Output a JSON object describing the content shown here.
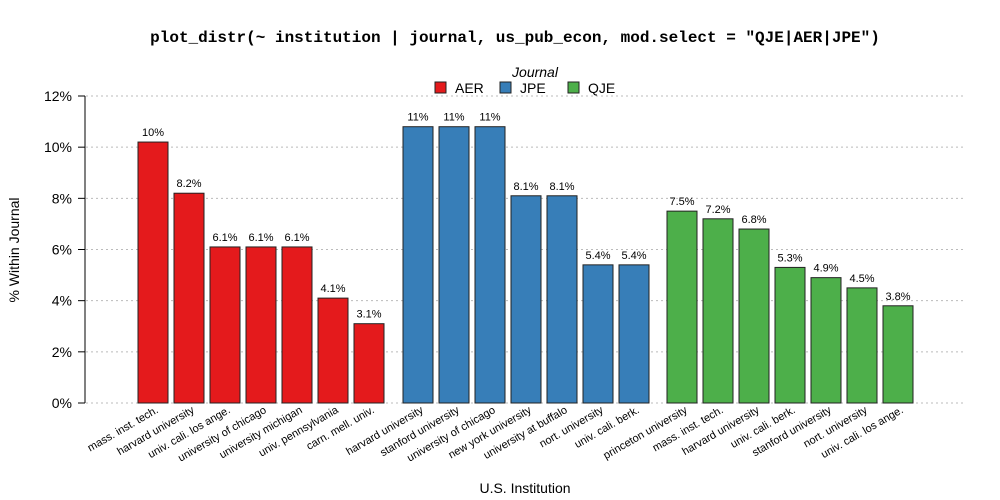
{
  "chart_data": {
    "type": "bar",
    "title": "plot_distr(~ institution | journal, us_pub_econ, mod.select = \"QJE|AER|JPE\")",
    "xlabel": "U.S. Institution",
    "ylabel": "% Within Journal",
    "ylim": [
      0,
      12
    ],
    "yticks": [
      "0%",
      "2%",
      "4%",
      "6%",
      "8%",
      "10%",
      "12%"
    ],
    "grid": "horizontal dotted",
    "legend": {
      "title": "Journal",
      "placement": "top-center"
    },
    "series": [
      {
        "name": "AER",
        "color": "#E41A1C",
        "categories": [
          "mass. inst. tech.",
          "harvard university",
          "univ. cali. los ange.",
          "university of chicago",
          "university michigan",
          "univ. pennsylvania",
          "carn. mell. univ."
        ],
        "values": [
          10.2,
          8.2,
          6.1,
          6.1,
          6.1,
          4.1,
          3.1
        ],
        "labels": [
          "10%",
          "8.2%",
          "6.1%",
          "6.1%",
          "6.1%",
          "4.1%",
          "3.1%"
        ]
      },
      {
        "name": "JPE",
        "color": "#377EB8",
        "categories": [
          "harvard university",
          "stanford university",
          "university of chicago",
          "new york university",
          "university at buffalo",
          "nort. university",
          "univ. cali. berk."
        ],
        "values": [
          10.8,
          10.8,
          10.8,
          8.1,
          8.1,
          5.4,
          5.4
        ],
        "labels": [
          "11%",
          "11%",
          "11%",
          "8.1%",
          "8.1%",
          "5.4%",
          "5.4%"
        ]
      },
      {
        "name": "QJE",
        "color": "#4DAF4A",
        "categories": [
          "princeton university",
          "mass. inst. tech.",
          "harvard university",
          "univ. cali. berk.",
          "stanford university",
          "nort. university",
          "univ. cali. los ange."
        ],
        "values": [
          7.5,
          7.2,
          6.8,
          5.3,
          4.9,
          4.5,
          3.8
        ],
        "labels": [
          "7.5%",
          "7.2%",
          "6.8%",
          "5.3%",
          "4.9%",
          "4.5%",
          "3.8%"
        ]
      }
    ]
  }
}
